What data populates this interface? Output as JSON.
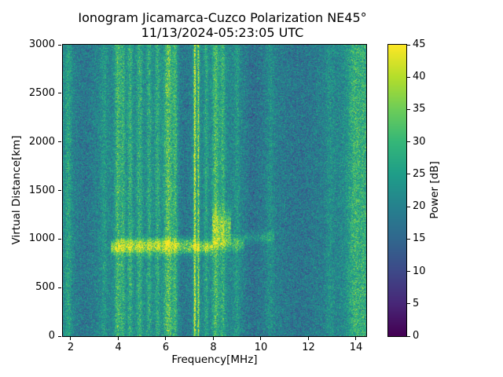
{
  "chart_data": {
    "type": "heatmap",
    "title": "Ionogram Jicamarca-Cuzco Polarization NE45°",
    "subtitle": "11/13/2024-05:23:05 UTC",
    "xlabel": "Frequency[MHz]",
    "ylabel": "Virtual Distance[km]",
    "xlim": [
      1.67,
      14.43
    ],
    "ylim": [
      0,
      3000
    ],
    "xticks": [
      2,
      4,
      6,
      8,
      10,
      12,
      14
    ],
    "yticks": [
      0,
      500,
      1000,
      1500,
      2000,
      2500,
      3000
    ],
    "grid": false,
    "colorbar": {
      "label": "Power [dB]",
      "min": 0,
      "max": 45,
      "ticks": [
        0,
        5,
        10,
        15,
        20,
        25,
        30,
        35,
        40,
        45
      ],
      "colormap": "viridis",
      "position": "right"
    },
    "noise": {
      "mean": 21,
      "std": 9.5,
      "seed": 42
    },
    "vertical_bands": [
      {
        "f": 1.9,
        "width": 0.1,
        "amp": 6
      },
      {
        "f": 2.6,
        "width": 0.35,
        "amp": -3
      },
      {
        "f": 3.4,
        "width": 0.08,
        "amp": 4
      },
      {
        "f": 3.98,
        "width": 0.09,
        "amp": 10
      },
      {
        "f": 4.2,
        "width": 0.07,
        "amp": 8
      },
      {
        "f": 4.5,
        "width": 0.08,
        "amp": 8
      },
      {
        "f": 4.9,
        "width": 0.09,
        "amp": 8
      },
      {
        "f": 5.3,
        "width": 0.08,
        "amp": 7
      },
      {
        "f": 5.65,
        "width": 0.08,
        "amp": 7
      },
      {
        "f": 6.1,
        "width": 0.13,
        "amp": 13
      },
      {
        "f": 6.4,
        "width": 0.07,
        "amp": 9
      },
      {
        "f": 6.8,
        "width": 0.2,
        "amp": -3
      },
      {
        "f": 7.22,
        "width": 0.035,
        "amp": 24
      },
      {
        "f": 7.37,
        "width": 0.03,
        "amp": 19
      },
      {
        "f": 7.7,
        "width": 0.06,
        "amp": 6
      },
      {
        "f": 8.1,
        "width": 0.1,
        "amp": 11
      },
      {
        "f": 8.4,
        "width": 0.08,
        "amp": 8
      },
      {
        "f": 9.0,
        "width": 0.08,
        "amp": 4
      },
      {
        "f": 9.7,
        "width": 0.3,
        "amp": -4
      },
      {
        "f": 10.4,
        "width": 0.1,
        "amp": 3
      },
      {
        "f": 11.6,
        "width": 0.8,
        "amp": -3.5
      },
      {
        "f": 12.9,
        "width": 0.1,
        "amp": 3
      },
      {
        "f": 14.0,
        "width": 0.25,
        "amp": 9
      },
      {
        "f": 14.35,
        "width": 0.08,
        "amp": 5
      }
    ],
    "echo_trace": {
      "description": "Ionospheric echo layer near 900-1300 km virtual distance between ~4 and ~10.5 MHz",
      "segments": [
        {
          "f_start": 3.7,
          "f_end": 8.0,
          "alt": 915,
          "thickness": 110,
          "amp": 17
        },
        {
          "f_start": 4.1,
          "f_end": 7.3,
          "alt": 975,
          "thickness": 60,
          "amp": 6
        },
        {
          "f_start": 7.95,
          "f_end": 8.75,
          "alt": 1130,
          "thickness": 280,
          "amp": 13
        },
        {
          "f_start": 8.0,
          "f_end": 9.3,
          "alt": 950,
          "thickness": 110,
          "amp": 10
        },
        {
          "f_start": 9.3,
          "f_end": 10.55,
          "alt": 1020,
          "thickness": 90,
          "amp": 7
        }
      ]
    }
  }
}
